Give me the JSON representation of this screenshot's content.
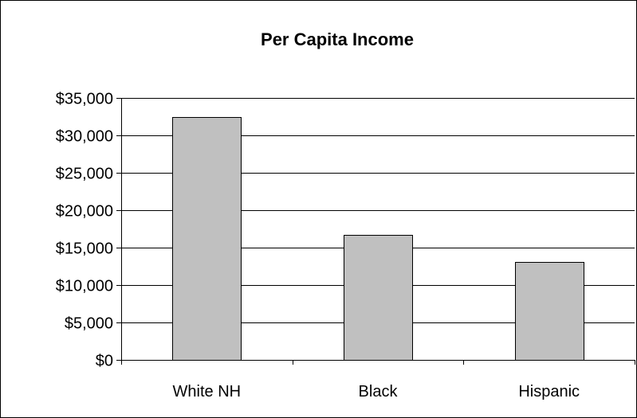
{
  "chart_data": {
    "type": "bar",
    "title": "Per Capita Income",
    "xlabel": "",
    "ylabel": "",
    "categories": [
      "White NH",
      "Black",
      "Hispanic"
    ],
    "values": [
      32400,
      16700,
      13100
    ],
    "ylim": [
      0,
      35000
    ],
    "y_tick_values": [
      0,
      5000,
      10000,
      15000,
      20000,
      25000,
      30000,
      35000
    ],
    "y_tick_labels": [
      "$0",
      "$5,000",
      "$10,000",
      "$15,000",
      "$20,000",
      "$25,000",
      "$30,000",
      "$35,000"
    ],
    "grid": true,
    "legend": "none",
    "colors": {
      "bar_fill": "#c0c0c0",
      "bar_stroke": "#000000",
      "grid": "#000000",
      "axis": "#000000",
      "frame": "#000000",
      "background": "#ffffff"
    }
  }
}
